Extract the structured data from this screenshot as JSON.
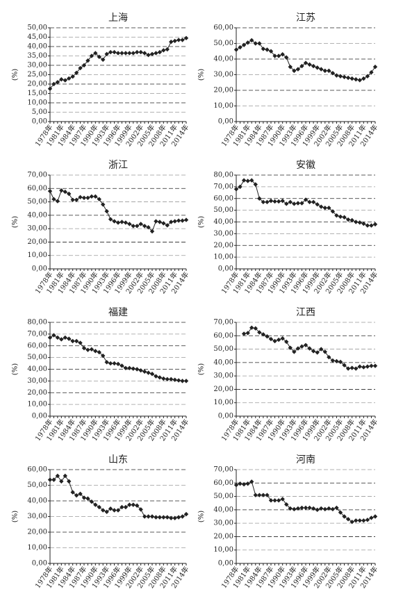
{
  "chart_data": [
    {
      "type": "line",
      "title": "上海",
      "y_label": "(%)",
      "categories": [
        "1978年",
        null,
        null,
        "1981年",
        null,
        null,
        "1984年",
        null,
        null,
        "1987年",
        null,
        null,
        "1990年",
        null,
        null,
        "1993年",
        null,
        null,
        "1996年",
        null,
        null,
        "1999年",
        null,
        null,
        "2002年",
        null,
        null,
        "2005年",
        null,
        null,
        "2008年",
        null,
        null,
        "2011年",
        null,
        null,
        "2014年"
      ],
      "values": [
        17.5,
        20,
        21,
        22.5,
        22,
        23,
        24,
        26,
        28.5,
        30,
        32.5,
        35,
        36.5,
        34.5,
        33,
        36,
        37,
        37,
        36.5,
        36.5,
        36.5,
        36.5,
        36.5,
        37,
        37,
        36.5,
        35.5,
        36,
        36.5,
        37,
        38,
        38.5,
        42.5,
        43,
        43.5,
        43.5,
        44.5
      ],
      "color": "#222222",
      "ylim": [
        0,
        50
      ],
      "yticks": [
        {
          "value": 0,
          "label": "0,00"
        },
        {
          "value": 5,
          "label": "5,00"
        },
        {
          "value": 10,
          "label": "10,00"
        },
        {
          "value": 15,
          "label": "15,00"
        },
        {
          "value": 20,
          "label": "20,00"
        },
        {
          "value": 25,
          "label": "25,00"
        },
        {
          "value": 30,
          "label": "30,00"
        },
        {
          "value": 35,
          "label": "35,00"
        },
        {
          "value": 40,
          "label": "40,00"
        },
        {
          "value": 45,
          "label": "45,00"
        },
        {
          "value": 50,
          "label": "50,00"
        }
      ],
      "grid": true
    },
    {
      "type": "line",
      "title": "江苏",
      "y_label": "(%)",
      "categories": [
        "1978年",
        null,
        null,
        "1981年",
        null,
        null,
        "1984年",
        null,
        null,
        "1987年",
        null,
        null,
        "1990年",
        null,
        null,
        "1993年",
        null,
        null,
        "1996年",
        null,
        null,
        "1999年",
        null,
        null,
        "2002年",
        null,
        null,
        "2005年",
        null,
        null,
        "2008年",
        null,
        null,
        "2011年",
        null,
        null,
        "2014年"
      ],
      "values": [
        46,
        47.5,
        49,
        50.5,
        52,
        50,
        50,
        46.5,
        46,
        45,
        42,
        42,
        43,
        41,
        35,
        32.5,
        33.5,
        35.5,
        37.5,
        36.5,
        35.5,
        34.5,
        33.5,
        32.5,
        32.5,
        31,
        29.5,
        29,
        28.5,
        28,
        27.5,
        27,
        26.5,
        27.5,
        29,
        31.5,
        35
      ],
      "color": "#222222",
      "ylim": [
        0,
        60
      ],
      "yticks": [
        {
          "value": 0,
          "label": "0,00"
        },
        {
          "value": 10,
          "label": "10,00"
        },
        {
          "value": 20,
          "label": "20,00"
        },
        {
          "value": 30,
          "label": "30,00"
        },
        {
          "value": 40,
          "label": "40,00"
        },
        {
          "value": 50,
          "label": "50,00"
        },
        {
          "value": 60,
          "label": "60,00"
        }
      ],
      "grid": true
    },
    {
      "type": "line",
      "title": "浙江",
      "y_label": "(%)",
      "categories": [
        "1978年",
        null,
        null,
        "1981年",
        null,
        null,
        "1984年",
        null,
        null,
        "1987年",
        null,
        null,
        "1990年",
        null,
        null,
        "1993年",
        null,
        null,
        "1996年",
        null,
        null,
        "1999年",
        null,
        null,
        "2002年",
        null,
        null,
        "2005年",
        null,
        null,
        "2008年",
        null,
        null,
        "2011年",
        null,
        null,
        "2014年"
      ],
      "values": [
        58,
        52,
        50.5,
        58.5,
        57.5,
        56,
        51.5,
        51.5,
        53.5,
        53,
        53,
        54,
        54,
        52,
        48,
        43,
        37,
        35.5,
        34.5,
        35,
        34.5,
        33.5,
        32,
        32,
        33.5,
        32,
        31,
        28,
        35.5,
        35,
        34,
        32.5,
        35,
        35.5,
        36,
        36,
        36.5
      ],
      "color": "#222222",
      "ylim": [
        0,
        70
      ],
      "yticks": [
        {
          "value": 0,
          "label": "0,00"
        },
        {
          "value": 10,
          "label": "10,00"
        },
        {
          "value": 20,
          "label": "20,00"
        },
        {
          "value": 30,
          "label": "30,00"
        },
        {
          "value": 40,
          "label": "40,00"
        },
        {
          "value": 50,
          "label": "50,00"
        },
        {
          "value": 60,
          "label": "60,00"
        },
        {
          "value": 70,
          "label": "70,00"
        }
      ],
      "grid": true
    },
    {
      "type": "line",
      "title": "安徽",
      "y_label": "(%)",
      "categories": [
        "1978年",
        null,
        null,
        "1981年",
        null,
        null,
        "1984年",
        null,
        null,
        "1987年",
        null,
        null,
        "1990年",
        null,
        null,
        "1993年",
        null,
        null,
        "1996年",
        null,
        null,
        "1999年",
        null,
        null,
        "2002年",
        null,
        null,
        "2005年",
        null,
        null,
        "2008年",
        null,
        null,
        "2011年",
        null,
        null,
        "2014年"
      ],
      "values": [
        68,
        70,
        75.5,
        75,
        75.5,
        72,
        60,
        57,
        57,
        58,
        57.5,
        57.5,
        58,
        55.5,
        57,
        55.5,
        56,
        56,
        59,
        57,
        57,
        55,
        53,
        52,
        52,
        49,
        45.5,
        44.5,
        44,
        42,
        41.5,
        40,
        39.5,
        38.5,
        37,
        37,
        38
      ],
      "color": "#222222",
      "ylim": [
        0,
        80
      ],
      "yticks": [
        {
          "value": 0,
          "label": "0,00"
        },
        {
          "value": 10,
          "label": "10,00"
        },
        {
          "value": 20,
          "label": "20,00"
        },
        {
          "value": 30,
          "label": "30,00"
        },
        {
          "value": 40,
          "label": "40,00"
        },
        {
          "value": 50,
          "label": "50,00"
        },
        {
          "value": 60,
          "label": "60,00"
        },
        {
          "value": 70,
          "label": "70,00"
        },
        {
          "value": 80,
          "label": "80,00"
        }
      ],
      "grid": true
    },
    {
      "type": "line",
      "title": "福建",
      "y_label": "(%)",
      "categories": [
        "1978年",
        null,
        null,
        "1981年",
        null,
        null,
        "1984年",
        null,
        null,
        "1987年",
        null,
        null,
        "1990年",
        null,
        null,
        "1993年",
        null,
        null,
        "1996年",
        null,
        null,
        "1999年",
        null,
        null,
        "2002年",
        null,
        null,
        "2005年",
        null,
        null,
        "2008年",
        null,
        null,
        "2011年",
        null,
        null,
        "2014年"
      ],
      "values": [
        67,
        69,
        67,
        65.5,
        67,
        66,
        64,
        64,
        62.5,
        58,
        56.5,
        57,
        55.5,
        54.5,
        51.5,
        46,
        45,
        45,
        44.5,
        43,
        41,
        41,
        40.5,
        40,
        39,
        38,
        37,
        36,
        34,
        33,
        32,
        31.5,
        31.5,
        31,
        30.5,
        30,
        30
      ],
      "color": "#222222",
      "ylim": [
        0,
        80
      ],
      "yticks": [
        {
          "value": 0,
          "label": "0,00"
        },
        {
          "value": 10,
          "label": "10,00"
        },
        {
          "value": 20,
          "label": "20,00"
        },
        {
          "value": 30,
          "label": "30,00"
        },
        {
          "value": 40,
          "label": "40,00"
        },
        {
          "value": 50,
          "label": "50,00"
        },
        {
          "value": 60,
          "label": "60,00"
        },
        {
          "value": 70,
          "label": "70,00"
        },
        {
          "value": 80,
          "label": "80,00"
        }
      ],
      "grid": true
    },
    {
      "type": "line",
      "title": "江西",
      "y_label": "(%)",
      "categories": [
        "1978年",
        null,
        null,
        "1981年",
        null,
        null,
        "1984年",
        null,
        null,
        "1987年",
        null,
        null,
        "1990年",
        null,
        null,
        "1993年",
        null,
        null,
        "1996年",
        null,
        null,
        "1999年",
        null,
        null,
        "2002年",
        null,
        null,
        "2005年",
        null,
        null,
        "2008年",
        null,
        null,
        "2011年",
        null,
        null,
        "2014年"
      ],
      "values": [
        null,
        null,
        61.5,
        62,
        66,
        65.5,
        62.5,
        61,
        59.5,
        57.5,
        56,
        57,
        58,
        55.5,
        51,
        48,
        50.5,
        52,
        53,
        50.5,
        48.5,
        47.5,
        50,
        48,
        44,
        41.5,
        41,
        40.5,
        38,
        35.5,
        36,
        35.5,
        37,
        36.5,
        37,
        37.5,
        37.5
      ],
      "color": "#222222",
      "ylim": [
        0,
        70
      ],
      "yticks": [
        {
          "value": 0,
          "label": "0,00"
        },
        {
          "value": 10,
          "label": "10,00"
        },
        {
          "value": 20,
          "label": "20,00"
        },
        {
          "value": 30,
          "label": "30,00"
        },
        {
          "value": 40,
          "label": "40,00"
        },
        {
          "value": 50,
          "label": "50,00"
        },
        {
          "value": 60,
          "label": "60,00"
        },
        {
          "value": 70,
          "label": "70,00"
        }
      ],
      "grid": true
    },
    {
      "type": "line",
      "title": "山东",
      "y_label": "(%)",
      "categories": [
        "1978年",
        null,
        null,
        "1981年",
        null,
        null,
        "1984年",
        null,
        null,
        "1987年",
        null,
        null,
        "1990年",
        null,
        null,
        "1993年",
        null,
        null,
        "1996年",
        null,
        null,
        "1999年",
        null,
        null,
        "2002年",
        null,
        null,
        "2005年",
        null,
        null,
        "2008年",
        null,
        null,
        "2011年",
        null,
        null,
        "2014年"
      ],
      "values": [
        53.5,
        53.5,
        56,
        52.5,
        56,
        52.5,
        45.5,
        43.5,
        44.5,
        42,
        41.5,
        39.5,
        37.5,
        36,
        34,
        33,
        35,
        34,
        34,
        36,
        36,
        37.5,
        37.5,
        37,
        34.5,
        30,
        30,
        30,
        29.5,
        29.5,
        29.5,
        29.5,
        29,
        29,
        29.5,
        30,
        31.5
      ],
      "color": "#222222",
      "ylim": [
        0,
        60
      ],
      "yticks": [
        {
          "value": 0,
          "label": "0,00"
        },
        {
          "value": 10,
          "label": "10,00"
        },
        {
          "value": 20,
          "label": "20,00"
        },
        {
          "value": 30,
          "label": "30,00"
        },
        {
          "value": 40,
          "label": "40,00"
        },
        {
          "value": 50,
          "label": "50,00"
        },
        {
          "value": 60,
          "label": "60,00"
        }
      ],
      "grid": true
    },
    {
      "type": "line",
      "title": "河南",
      "y_label": "(%)",
      "categories": [
        "1978年",
        null,
        null,
        "1981年",
        null,
        null,
        "1984年",
        null,
        null,
        "1987年",
        null,
        null,
        "1990年",
        null,
        null,
        "1993年",
        null,
        null,
        "1996年",
        null,
        null,
        "1999年",
        null,
        null,
        "2002年",
        null,
        null,
        "2005年",
        null,
        null,
        "2008年",
        null,
        null,
        "2011年",
        null,
        null,
        "2014年"
      ],
      "values": [
        58.5,
        59.5,
        59,
        59.5,
        61,
        51,
        51,
        51,
        51,
        47,
        47,
        47,
        48,
        44,
        41,
        40.5,
        41,
        41.5,
        41.5,
        41.5,
        41,
        40,
        41,
        40.5,
        41,
        40.5,
        41.5,
        38,
        35,
        33,
        31,
        32,
        32,
        32,
        32.5,
        34,
        35
      ],
      "color": "#222222",
      "ylim": [
        0,
        70
      ],
      "yticks": [
        {
          "value": 0,
          "label": "0,00"
        },
        {
          "value": 10,
          "label": "10,00"
        },
        {
          "value": 20,
          "label": "20,00"
        },
        {
          "value": 30,
          "label": "30,00"
        },
        {
          "value": 40,
          "label": "40,00"
        },
        {
          "value": 50,
          "label": "50,00"
        },
        {
          "value": 60,
          "label": "60,00"
        },
        {
          "value": 70,
          "label": "70,00"
        }
      ],
      "grid": true
    }
  ]
}
